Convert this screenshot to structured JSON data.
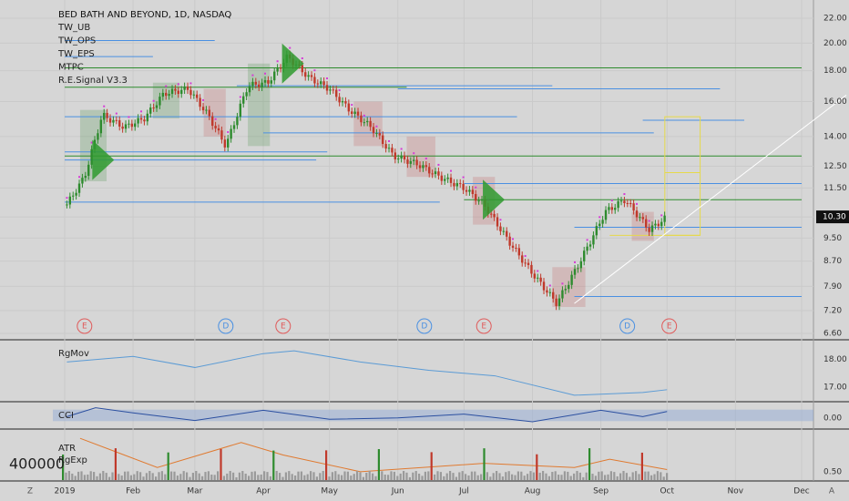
{
  "header": {
    "title": "BED BATH AND BEYOND, 1D, NASDAQ",
    "indicators": [
      "TW_UB",
      "TW_OPS",
      "TW_EPS",
      "MTPC",
      "R.E.Signal V3.3"
    ]
  },
  "main_axis": {
    "ticks": [
      "22.00",
      "20.00",
      "18.00",
      "16.00",
      "14.00",
      "12.50",
      "11.50",
      "10.30",
      "9.50",
      "8.70",
      "7.90",
      "7.20",
      "6.60"
    ],
    "price_values": [
      22.0,
      20.0,
      18.0,
      16.0,
      14.0,
      12.5,
      11.5,
      10.3,
      9.5,
      8.7,
      7.9,
      7.2,
      6.6
    ],
    "last_price": "10.30",
    "last_price_value": 10.3
  },
  "time_axis": {
    "ticks": [
      "2019",
      "Feb",
      "Mar",
      "Apr",
      "May",
      "Jun",
      "Jul",
      "Aug",
      "Sep",
      "Oct",
      "Nov",
      "Dec"
    ],
    "date_values": [
      "2019-01-01",
      "2019-02-01",
      "2019-03-01",
      "2019-04-01",
      "2019-05-01",
      "2019-06-01",
      "2019-07-01",
      "2019-08-01",
      "2019-09-01",
      "2019-10-01",
      "2019-11-01",
      "2019-12-01"
    ],
    "corner_left": "Z",
    "corner_right": "A"
  },
  "events": [
    {
      "label": "E",
      "date": "2019-01-10",
      "color": "#e05a5a"
    },
    {
      "label": "D",
      "date": "2019-03-15",
      "color": "#4a90e2"
    },
    {
      "label": "E",
      "date": "2019-04-10",
      "color": "#e05a5a"
    },
    {
      "label": "D",
      "date": "2019-06-13",
      "color": "#4a90e2"
    },
    {
      "label": "E",
      "date": "2019-07-10",
      "color": "#e05a5a"
    },
    {
      "label": "D",
      "date": "2019-09-13",
      "color": "#4a90e2"
    },
    {
      "label": "E",
      "date": "2019-10-02",
      "color": "#e05a5a"
    }
  ],
  "chart_data": [
    {
      "type": "line",
      "name": "price",
      "x": [
        "2019-01-02",
        "2019-01-10",
        "2019-01-18",
        "2019-01-28",
        "2019-02-06",
        "2019-02-15",
        "2019-02-26",
        "2019-03-07",
        "2019-03-15",
        "2019-03-25",
        "2019-04-03",
        "2019-04-12",
        "2019-04-22",
        "2019-05-01",
        "2019-05-10",
        "2019-05-20",
        "2019-05-30",
        "2019-06-10",
        "2019-06-20",
        "2019-07-01",
        "2019-07-10",
        "2019-07-22",
        "2019-08-01",
        "2019-08-12",
        "2019-08-22",
        "2019-09-03",
        "2019-09-12",
        "2019-09-23",
        "2019-10-01"
      ],
      "values": [
        10.8,
        12.0,
        15.2,
        14.5,
        15.0,
        16.5,
        16.8,
        15.2,
        13.5,
        17.0,
        17.2,
        19.0,
        17.5,
        16.8,
        15.5,
        14.5,
        13.0,
        12.6,
        12.0,
        11.5,
        10.8,
        9.3,
        8.3,
        7.4,
        8.6,
        10.5,
        11.0,
        9.8,
        10.3
      ],
      "ylim": [
        6.6,
        22.0
      ],
      "scale": "log"
    },
    {
      "type": "line",
      "name": "RgMov",
      "ticks": [
        "18.00",
        "17.00"
      ],
      "x": [
        "2019-01-02",
        "2019-02-01",
        "2019-03-01",
        "2019-04-01",
        "2019-04-15",
        "2019-05-15",
        "2019-06-15",
        "2019-07-15",
        "2019-08-20",
        "2019-09-20",
        "2019-10-01"
      ],
      "values": [
        17.9,
        18.1,
        17.7,
        18.2,
        18.3,
        17.9,
        17.6,
        17.4,
        16.7,
        16.8,
        16.9
      ],
      "ylim": [
        16.5,
        18.6
      ],
      "color": "#5b9bd5"
    },
    {
      "type": "line",
      "name": "CCI",
      "ticks": [
        "0.00"
      ],
      "x": [
        "2019-01-02",
        "2019-01-15",
        "2019-02-01",
        "2019-03-01",
        "2019-04-01",
        "2019-05-01",
        "2019-06-01",
        "2019-07-01",
        "2019-08-01",
        "2019-09-01",
        "2019-09-20",
        "2019-10-01"
      ],
      "values": [
        -10,
        60,
        20,
        -40,
        40,
        -30,
        -20,
        10,
        -50,
        40,
        -10,
        30
      ],
      "ylim": [
        -100,
        100
      ]
    },
    {
      "type": "bar",
      "name": "ATR RgExp",
      "labels": [
        "ATR",
        "RgExp"
      ],
      "ticks": [
        "0.50"
      ],
      "overlay_value": "400000",
      "x": [
        "2019-01-08",
        "2019-02-12",
        "2019-03-22",
        "2019-04-10",
        "2019-05-15",
        "2019-07-10",
        "2019-08-20",
        "2019-09-05",
        "2019-10-01"
      ],
      "values": [
        1.3,
        0.6,
        1.2,
        0.9,
        0.5,
        0.7,
        0.6,
        0.8,
        0.55
      ],
      "ylim": [
        0.3,
        1.5
      ]
    }
  ],
  "colors": {
    "background": "#d6d6d6",
    "green_level": "#2e8b2e",
    "blue_level": "#4a90e2",
    "trend": "#ffffff",
    "yellow_box": "#e6d94a"
  }
}
